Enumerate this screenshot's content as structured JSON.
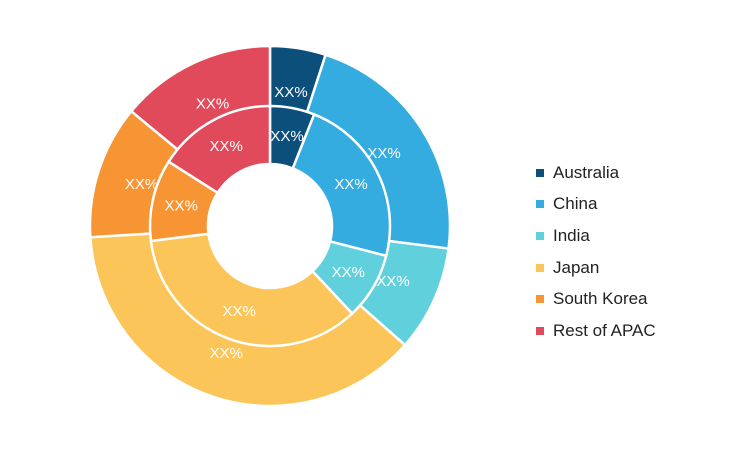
{
  "chart_data": {
    "type": "pie",
    "variant": "nested-donut",
    "categories": [
      "Australia",
      "China",
      "India",
      "Japan",
      "South Korea",
      "Rest of APAC"
    ],
    "colors": [
      "#0b4f7a",
      "#35ace0",
      "#5fd0dc",
      "#fcc559",
      "#f79433",
      "#e14a5a"
    ],
    "series": [
      {
        "ring": "outer",
        "values": [
          5,
          22,
          9.5,
          37.5,
          12,
          14
        ],
        "labels": [
          "XX%",
          "XX%",
          "XX%",
          "XX%",
          "XX%",
          "XX%"
        ]
      },
      {
        "ring": "inner",
        "values": [
          6,
          23,
          9,
          35,
          11,
          16
        ],
        "labels": [
          "XX%",
          "XX%",
          "XX%",
          "XX%",
          "XX%",
          "XX%"
        ]
      }
    ],
    "legend_position": "right"
  },
  "legend": {
    "items": [
      {
        "label": "Australia",
        "color": "#0b4f7a"
      },
      {
        "label": "China",
        "color": "#35ace0"
      },
      {
        "label": "India",
        "color": "#5fd0dc"
      },
      {
        "label": "Japan",
        "color": "#fcc559"
      },
      {
        "label": "South Korea",
        "color": "#f79433"
      },
      {
        "label": "Rest of APAC",
        "color": "#e14a5a"
      }
    ]
  }
}
